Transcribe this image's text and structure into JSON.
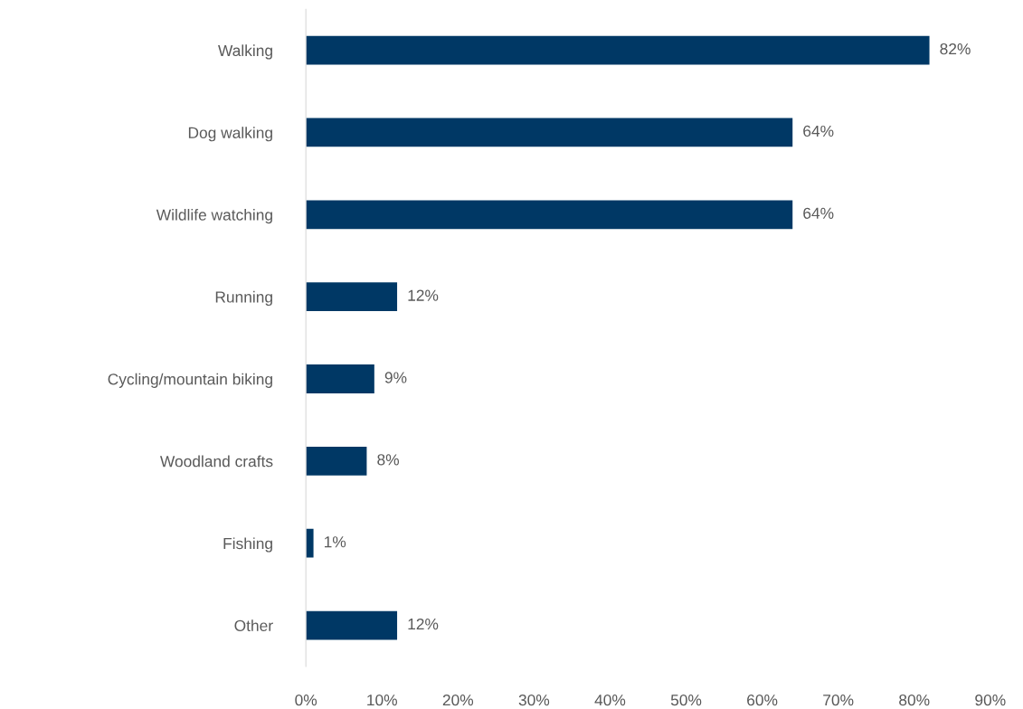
{
  "chart_data": {
    "type": "bar",
    "orientation": "horizontal",
    "categories": [
      "Walking",
      "Dog walking",
      "Wildlife watching",
      "Running",
      "Cycling/mountain biking",
      "Woodland crafts",
      "Fishing",
      "Other"
    ],
    "values": [
      82,
      64,
      64,
      12,
      9,
      8,
      1,
      12
    ],
    "value_labels": [
      "82%",
      "64%",
      "64%",
      "12%",
      "9%",
      "8%",
      "1%",
      "12%"
    ],
    "color": "#003865",
    "xlim": [
      0,
      90
    ],
    "xticks": [
      {
        "value": 0,
        "label": "0%"
      },
      {
        "value": 10,
        "label": "10%"
      },
      {
        "value": 20,
        "label": "20%"
      },
      {
        "value": 30,
        "label": "30%"
      },
      {
        "value": 40,
        "label": "40%"
      },
      {
        "value": 50,
        "label": "50%"
      },
      {
        "value": 60,
        "label": "60%"
      },
      {
        "value": 70,
        "label": "70%"
      },
      {
        "value": 80,
        "label": "80%"
      },
      {
        "value": 90,
        "label": "90%"
      }
    ],
    "grid": false,
    "legend": false
  }
}
